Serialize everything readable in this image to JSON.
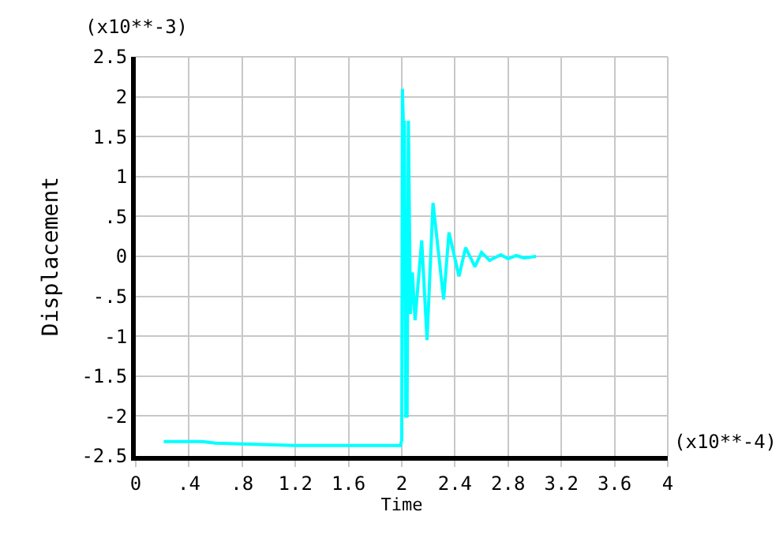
{
  "chart_data": {
    "type": "line",
    "xlabel": "Time",
    "ylabel": "Displacement",
    "annotations": [
      "(x10**-3)",
      "(x10**-4)"
    ],
    "series": [
      {
        "color": "#00ffff",
        "x": [
          0.21,
          0.5,
          0.6,
          0.8,
          1.0,
          1.2,
          1.6,
          1.99,
          2.0,
          2.005,
          2.015,
          2.02,
          2.03,
          2.04,
          2.05,
          2.065,
          2.08,
          2.1,
          2.15,
          2.19,
          2.235,
          2.315,
          2.355,
          2.43,
          2.48,
          2.55,
          2.6,
          2.66,
          2.745,
          2.8,
          2.86,
          2.92,
          3.01
        ],
        "values": [
          -2.32,
          -2.32,
          -2.34,
          -2.35,
          -2.36,
          -2.37,
          -2.37,
          -2.37,
          -2.3,
          2.1,
          1.5,
          1.7,
          -2.0,
          -2.0,
          1.7,
          -0.72,
          -0.2,
          -0.8,
          0.2,
          -1.05,
          0.67,
          -0.54,
          0.3,
          -0.25,
          0.11,
          -0.13,
          0.05,
          -0.05,
          0.02,
          -0.03,
          0.01,
          -0.02,
          0.0
        ]
      }
    ],
    "xlim": [
      0,
      4
    ],
    "ylim": [
      -2.5,
      2.5
    ],
    "xticks": [
      0,
      {
        "value": 0.4,
        "label": ".4"
      },
      {
        "value": 0.8,
        "label": ".8"
      },
      1.2,
      1.6,
      2,
      2.4,
      2.8,
      3.2,
      3.6,
      4
    ],
    "yticks": [
      {
        "value": -2.5,
        "label": "-2.5"
      },
      -2,
      {
        "value": -1.5,
        "label": "-1.5"
      },
      -1,
      {
        "value": -0.5,
        "label": "-.5"
      },
      0,
      {
        "value": 0.5,
        "label": ".5"
      },
      1,
      1.5,
      2,
      2.5
    ],
    "grid": true,
    "marker": "none",
    "line_style": "solid"
  }
}
